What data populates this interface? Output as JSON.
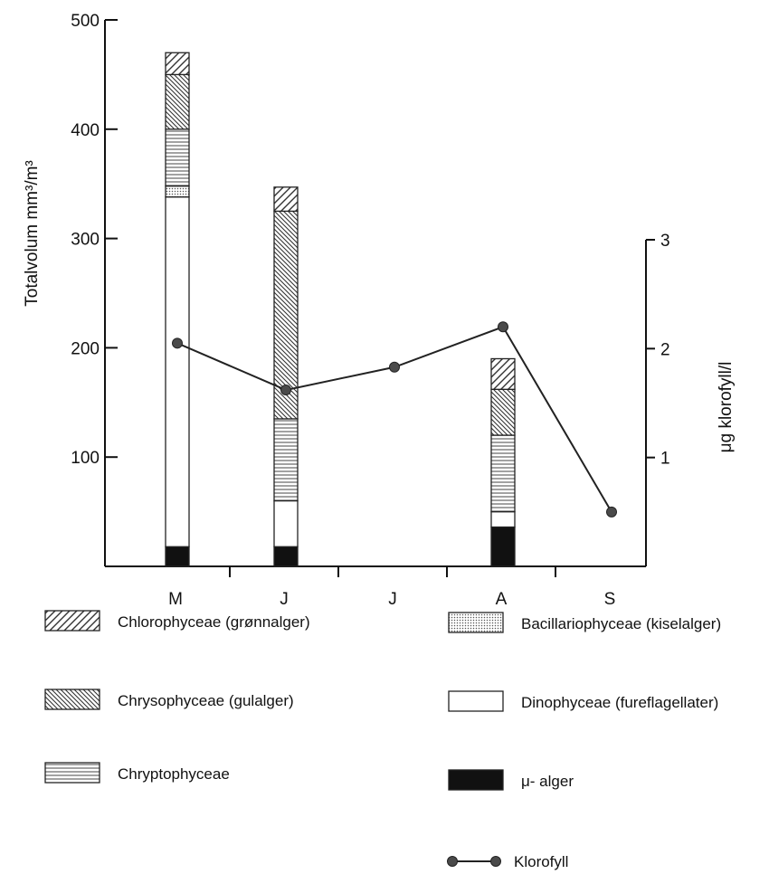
{
  "chart_data": {
    "type": "bar",
    "stacked": true,
    "categories": [
      "M",
      "J",
      "J",
      "A",
      "S"
    ],
    "y_left": {
      "label": "Totalvolum mm³/m³",
      "ylim": [
        0,
        500
      ],
      "ticks": [
        100,
        200,
        300,
        400,
        500
      ]
    },
    "y_right": {
      "label": "μg klorofyll/l",
      "ylim": [
        0,
        3
      ],
      "ticks": [
        1,
        2,
        3
      ]
    },
    "grid": false,
    "legend_position": "bottom",
    "series": [
      {
        "name": "μ- alger",
        "pattern": "solid-black",
        "values": [
          18,
          18,
          null,
          36,
          null
        ]
      },
      {
        "name": "Dinophyceae (fureflagellater)",
        "pattern": "white",
        "values": [
          320,
          42,
          null,
          14,
          null
        ]
      },
      {
        "name": "Bacillariophyceae (kiselalger)",
        "pattern": "dotted",
        "values": [
          10,
          0,
          null,
          0,
          null
        ]
      },
      {
        "name": "Chryptophyceae",
        "pattern": "horizontal",
        "values": [
          52,
          75,
          null,
          70,
          null
        ]
      },
      {
        "name": "Chrysophyceae (gulalger)",
        "pattern": "diagonal-dense",
        "values": [
          50,
          190,
          null,
          42,
          null
        ]
      },
      {
        "name": "Chlorophyceae (grønnalger)",
        "pattern": "diagonal",
        "values": [
          20,
          22,
          null,
          28,
          null
        ]
      }
    ],
    "line_series": {
      "name": "Klorofyll",
      "axis": "right",
      "values": [
        2.05,
        1.62,
        1.83,
        2.2,
        0.5
      ]
    }
  }
}
